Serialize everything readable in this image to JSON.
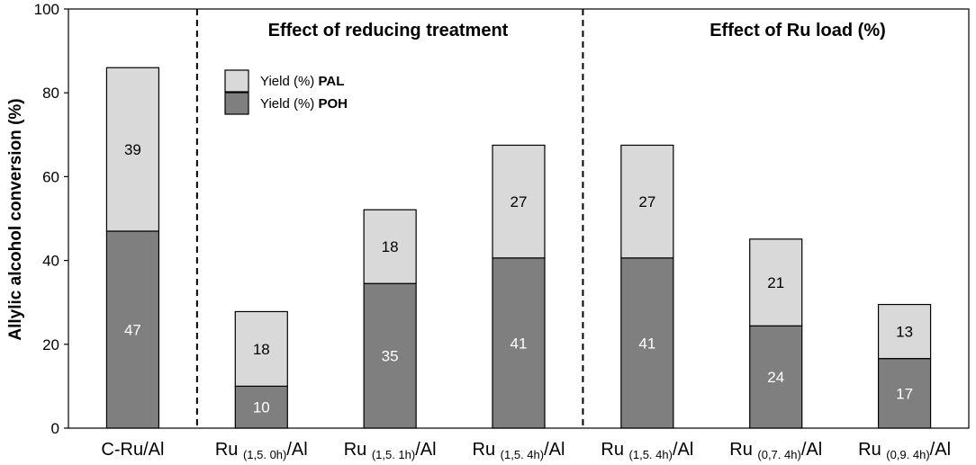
{
  "chart_data": {
    "type": "bar",
    "stacked": true,
    "ylabel": "Allylic alcohol conversion (%)",
    "ylim": [
      0,
      100
    ],
    "yticks": [
      "0",
      "20",
      "40",
      "60",
      "80",
      "100"
    ],
    "categories": [
      {
        "main": "C-Ru/Al",
        "sub": "",
        "suffix": ""
      },
      {
        "main": "Ru ",
        "sub": "(1,5. 0h)",
        "suffix": "/Al"
      },
      {
        "main": "Ru ",
        "sub": "(1,5. 1h)",
        "suffix": "/Al"
      },
      {
        "main": "Ru ",
        "sub": "(1,5. 4h)",
        "suffix": "/Al"
      },
      {
        "main": "Ru ",
        "sub": "(1,5. 4h)",
        "suffix": "/Al"
      },
      {
        "main": "Ru ",
        "sub": "(0,7. 4h)",
        "suffix": "/Al"
      },
      {
        "main": "Ru ",
        "sub": "(0,9. 4h)",
        "suffix": "/Al"
      }
    ],
    "series": [
      {
        "name_prefix": "Yield (%) ",
        "name_bold": "POH",
        "color": "#7f7f7f",
        "label_color": "#ffffff",
        "values": [
          47,
          10,
          35,
          41,
          41,
          24,
          17
        ]
      },
      {
        "name_prefix": "Yield (%) ",
        "name_bold": "PAL",
        "color": "#d9d9d9",
        "label_color": "#000000",
        "values": [
          39,
          18,
          18,
          27,
          27,
          21,
          13
        ]
      }
    ],
    "exact_values": {
      "POH": [
        47,
        10,
        34.5,
        40.6,
        40.6,
        24.4,
        16.6
      ],
      "PAL": [
        39,
        17.8,
        17.6,
        26.9,
        26.9,
        20.7,
        12.9
      ]
    },
    "section_titles": [
      "Effect of reducing treatment",
      "Effect of Ru load (%)"
    ],
    "dividers_after_category": [
      0,
      3
    ]
  }
}
